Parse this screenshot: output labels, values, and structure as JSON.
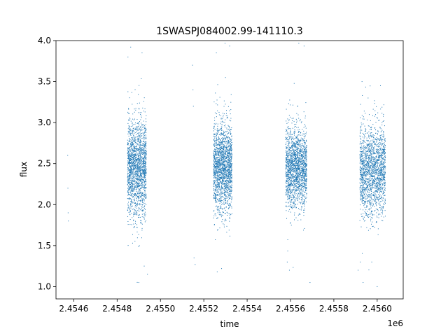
{
  "chart_data": {
    "type": "scatter",
    "title": "1SWASPJ084002.99-141110.3",
    "xlabel": "time",
    "ylabel": "flux",
    "x_offset_label": "1e6",
    "xlim": [
      2454518,
      2456120
    ],
    "ylim": [
      0.85,
      4.0
    ],
    "x_ticks": [
      2454600,
      2454800,
      2455000,
      2455200,
      2455400,
      2455600,
      2455800,
      2456000
    ],
    "x_tick_labels": [
      "2.4546",
      "2.4548",
      "2.4550",
      "2.4552",
      "2.4554",
      "2.4556",
      "2.4558",
      "2.4560"
    ],
    "y_ticks": [
      1.0,
      1.5,
      2.0,
      2.5,
      3.0,
      3.5,
      4.0
    ],
    "y_tick_labels": [
      "1.0",
      "1.5",
      "2.0",
      "2.5",
      "3.0",
      "3.5",
      "4.0"
    ],
    "grid": false,
    "marker_color": "#1f77b4",
    "series": [
      {
        "x": [
          2454572,
          2454573,
          2454574,
          2454575,
          2454850,
          2454900,
          2454915,
          2454925,
          2454940,
          2455148,
          2455150,
          2455152,
          2455155,
          2455160,
          2455258,
          2455262,
          2455282,
          2455300,
          2455585,
          2455595,
          2455690,
          2455912,
          2455922,
          2455930,
          2455935,
          2455958,
          2455975,
          2456000,
          2456015
        ],
        "y": [
          2.6,
          2.2,
          1.9,
          1.8,
          3.8,
          1.05,
          3.85,
          1.25,
          1.15,
          3.7,
          3.4,
          3.2,
          1.35,
          1.27,
          3.85,
          1.18,
          1.22,
          3.55,
          1.3,
          1.2,
          1.05,
          1.2,
          1.3,
          3.5,
          1.05,
          3.3,
          1.3,
          1.0,
          3.45
        ]
      }
    ],
    "clusters": [
      {
        "x_range": [
          2454848,
          2454935
        ],
        "flux_median": 2.45,
        "flux_spread": 0.38
      },
      {
        "x_range": [
          2455245,
          2455330
        ],
        "flux_median": 2.45,
        "flux_spread": 0.36
      },
      {
        "x_range": [
          2455578,
          2455675
        ],
        "flux_median": 2.45,
        "flux_spread": 0.32
      },
      {
        "x_range": [
          2455920,
          2456038
        ],
        "flux_median": 2.42,
        "flux_spread": 0.36
      }
    ]
  }
}
